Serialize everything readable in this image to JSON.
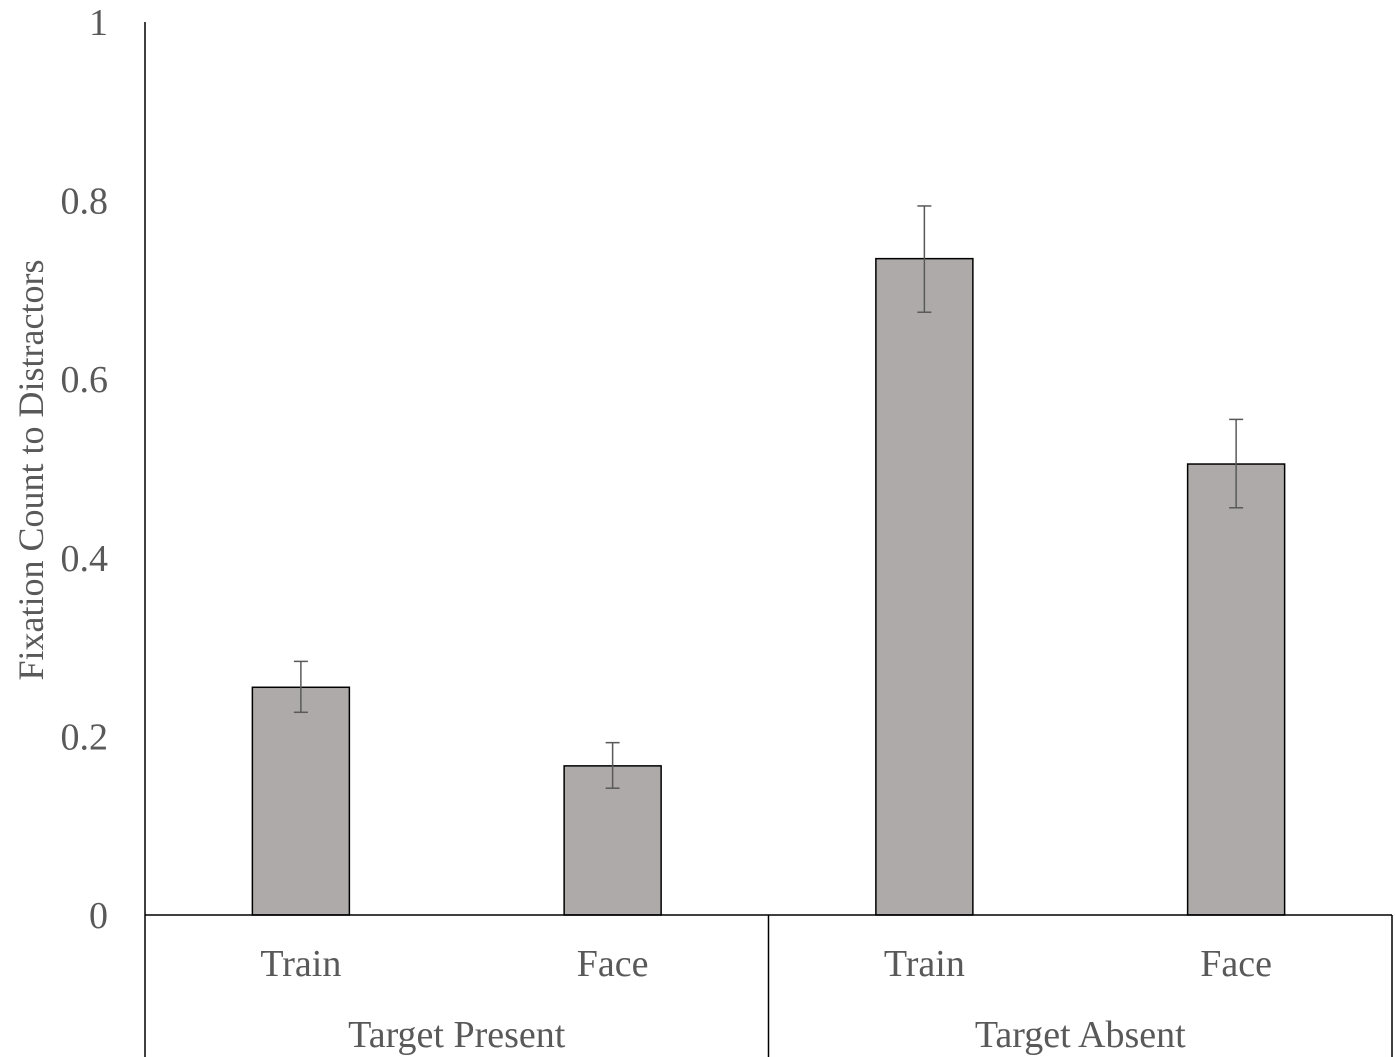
{
  "chart_data": {
    "type": "bar",
    "title": "",
    "ylabel": "Fixation Count to Distractors",
    "xlabel": "",
    "ylim": [
      0,
      1
    ],
    "yticks": [
      "0",
      "0.2",
      "0.4",
      "0.6",
      "0.8",
      "1"
    ],
    "grid": false,
    "legend": "none",
    "groups": [
      {
        "label": "Target Present",
        "categories": [
          {
            "label": "Train",
            "value": 0.255,
            "error_low": 0.227,
            "error_high": 0.284
          },
          {
            "label": "Face",
            "value": 0.167,
            "error_low": 0.142,
            "error_high": 0.193
          }
        ]
      },
      {
        "label": "Target Absent",
        "categories": [
          {
            "label": "Train",
            "value": 0.735,
            "error_low": 0.675,
            "error_high": 0.794
          },
          {
            "label": "Face",
            "value": 0.505,
            "error_low": 0.456,
            "error_high": 0.555
          }
        ]
      }
    ],
    "colors": {
      "bar_fill": "#aeaaaa",
      "bar_stroke": "#000000",
      "error_bar": "#595959",
      "axis": "#000000",
      "text": "#595959"
    }
  }
}
